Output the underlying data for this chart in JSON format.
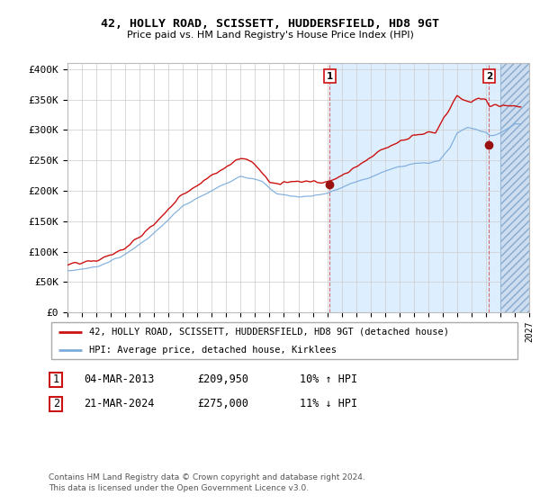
{
  "title": "42, HOLLY ROAD, SCISSETT, HUDDERSFIELD, HD8 9GT",
  "subtitle": "Price paid vs. HM Land Registry's House Price Index (HPI)",
  "ylabel_ticks": [
    "£0",
    "£50K",
    "£100K",
    "£150K",
    "£200K",
    "£250K",
    "£300K",
    "£350K",
    "£400K"
  ],
  "ytick_values": [
    0,
    50000,
    100000,
    150000,
    200000,
    250000,
    300000,
    350000,
    400000
  ],
  "ylim": [
    0,
    410000
  ],
  "xlim_start": 1995.5,
  "xlim_end": 2027.0,
  "hpi_color": "#7aabdb",
  "price_color": "#cc1111",
  "marker_color": "#991111",
  "legend_label_price": "42, HOLLY ROAD, SCISSETT, HUDDERSFIELD, HD8 9GT (detached house)",
  "legend_label_hpi": "HPI: Average price, detached house, Kirklees",
  "sale1_label": "1",
  "sale1_date": "04-MAR-2013",
  "sale1_price": "£209,950",
  "sale1_hpi": "10% ↑ HPI",
  "sale2_label": "2",
  "sale2_date": "21-MAR-2024",
  "sale2_price": "£275,000",
  "sale2_hpi": "11% ↓ HPI",
  "footer": "Contains HM Land Registry data © Crown copyright and database right 2024.\nThis data is licensed under the Open Government Licence v3.0.",
  "grid_color": "#cccccc",
  "bg_color": "#ffffff",
  "plot_bg": "#ffffff",
  "shade_bg": "#ddeeff",
  "hatch_bg": "#ccddf0",
  "sale1_x": 2013.17,
  "sale1_y": 209950,
  "sale2_x": 2024.21,
  "sale2_y": 275000
}
